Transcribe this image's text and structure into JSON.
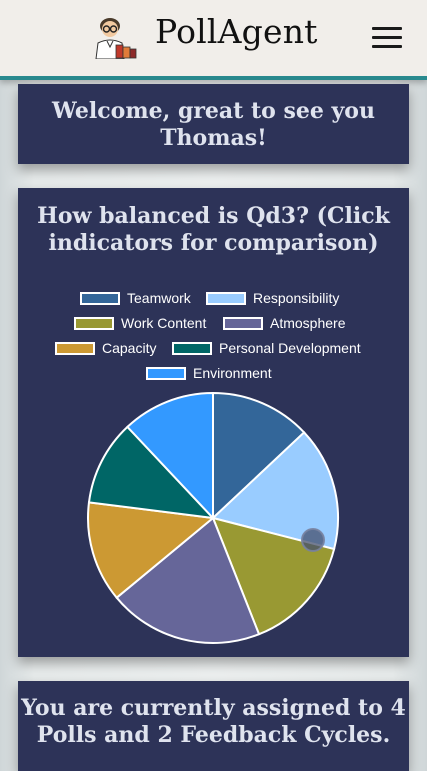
{
  "app": {
    "title": "PollAgent"
  },
  "header": {
    "logo_icon": "scientist-avatar-icon",
    "menu_icon": "hamburger-menu-icon"
  },
  "welcome": {
    "text": "Welcome, great to see you Thomas!"
  },
  "chart_card": {
    "title": "How balanced is Qd3? (Click indicators for comparison)"
  },
  "assignment": {
    "text": "You are currently assigned to 4 Polls and 2 Feedback Cycles."
  },
  "chart_data": {
    "type": "pie",
    "title": "How balanced is Qd3? (Click indicators for comparison)",
    "series": [
      {
        "name": "Teamwork",
        "value": 13,
        "color": "#336699"
      },
      {
        "name": "Responsibility",
        "value": 16,
        "color": "#99ccff"
      },
      {
        "name": "Work Content",
        "value": 15,
        "color": "#999933"
      },
      {
        "name": "Atmosphere",
        "value": 20,
        "color": "#666699"
      },
      {
        "name": "Capacity",
        "value": 13,
        "color": "#cc9933"
      },
      {
        "name": "Personal Development",
        "value": 11,
        "color": "#006666"
      },
      {
        "name": "Environment",
        "value": 12,
        "color": "#3399ff"
      }
    ],
    "legend_position": "top"
  }
}
